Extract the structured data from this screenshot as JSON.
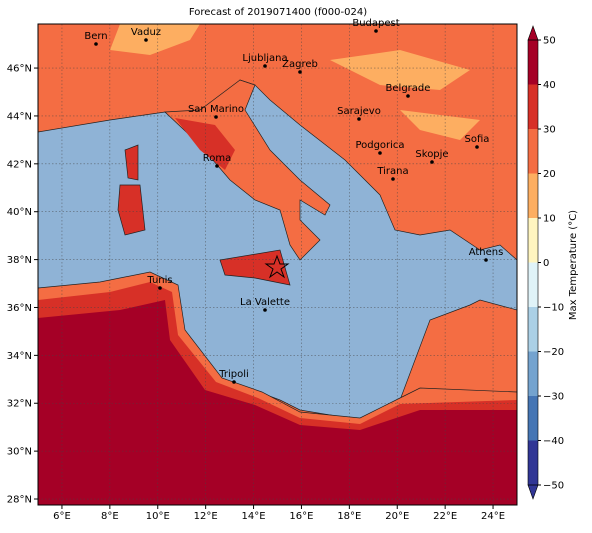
{
  "title": "Forecast of 2019071400 (f000-024)",
  "map": {
    "xlim": [
      5,
      25
    ],
    "ylim": [
      27.75,
      47.84
    ],
    "xticks": [
      {
        "value": 6,
        "label": "6°E"
      },
      {
        "value": 8,
        "label": "8°E"
      },
      {
        "value": 10,
        "label": "10°E"
      },
      {
        "value": 12,
        "label": "12°E"
      },
      {
        "value": 14,
        "label": "14°E"
      },
      {
        "value": 16,
        "label": "16°E"
      },
      {
        "value": 18,
        "label": "18°E"
      },
      {
        "value": 20,
        "label": "20°E"
      },
      {
        "value": 22,
        "label": "22°E"
      },
      {
        "value": 24,
        "label": "24°E"
      }
    ],
    "yticks": [
      {
        "value": 28,
        "label": "28°N"
      },
      {
        "value": 30,
        "label": "30°N"
      },
      {
        "value": 32,
        "label": "32°N"
      },
      {
        "value": 34,
        "label": "34°N"
      },
      {
        "value": 36,
        "label": "36°N"
      },
      {
        "value": 38,
        "label": "38°N"
      },
      {
        "value": 40,
        "label": "40°N"
      },
      {
        "value": 42,
        "label": "42°N"
      },
      {
        "value": 44,
        "label": "44°N"
      },
      {
        "value": 46,
        "label": "46°N"
      }
    ],
    "cities": [
      "Bern",
      "Vaduz",
      "Budapest",
      "Ljubljana",
      "Zagreb",
      "Belgrade",
      "San Marino",
      "Sarajevo",
      "Sofia",
      "Podgorica",
      "Skopje",
      "Roma",
      "Tirana",
      "Athens",
      "Tunis",
      "La Valette",
      "Tripoli"
    ]
  },
  "colorbar": {
    "label": "Max Temperature (°C)",
    "lim": [
      -50,
      50
    ],
    "extend": "both",
    "ticks": [
      {
        "value": -50,
        "label": "−50"
      },
      {
        "value": -40,
        "label": "−40"
      },
      {
        "value": -30,
        "label": "−30"
      },
      {
        "value": -20,
        "label": "−20"
      },
      {
        "value": -10,
        "label": "−10"
      },
      0,
      10,
      20,
      30,
      40,
      50
    ],
    "colors": [
      "#313695",
      "#4575b4",
      "#74a3cf",
      "#abd0e6",
      "#e0f3f8",
      "#fff5c0",
      "#fdae61",
      "#f46d43",
      "#d73027",
      "#a50026"
    ]
  }
}
